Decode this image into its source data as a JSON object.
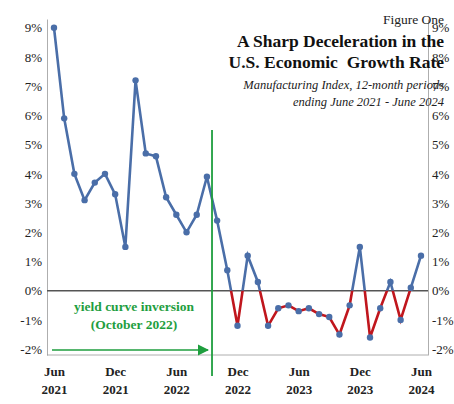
{
  "chart_data": {
    "type": "line",
    "title": [
      "A Sharp Deceleration in the",
      "U.S. Economic  Growth Rate"
    ],
    "subtitle": [
      "Manufacturing Index, 12-month periods",
      "ending June 2021 - June 2024"
    ],
    "annotations": [
      {
        "text": "Figure One"
      },
      {
        "text": [
          "yield curve inversion",
          "(October 2022)"
        ],
        "x": 15.5
      }
    ],
    "categories": [
      "Jun 2021",
      null,
      null,
      null,
      null,
      null,
      "Dec 2021",
      null,
      null,
      null,
      null,
      null,
      "Jun 2022",
      null,
      null,
      null,
      null,
      null,
      "Dec 2022",
      null,
      null,
      null,
      null,
      null,
      "Jun 2023",
      null,
      null,
      null,
      null,
      null,
      "Dec 2023",
      null,
      null,
      null,
      null,
      null,
      "Jun 2024"
    ],
    "series": [
      {
        "color": "#4a6ea8",
        "marker": "circle",
        "line_style": "solid",
        "values": [
          9.0,
          5.9,
          4.0,
          3.1,
          3.7,
          4.0,
          3.3,
          1.5,
          7.2,
          4.7,
          4.6,
          3.2,
          2.6,
          2.0,
          2.6,
          3.9,
          2.4,
          0.7,
          -1.2,
          1.2,
          0.3,
          -1.2,
          -0.6,
          -0.5,
          -0.7,
          -0.6,
          -0.8,
          -0.9,
          -1.5,
          -0.5,
          1.5,
          -1.6,
          -0.6,
          0.3,
          -1.0,
          0.1,
          1.2
        ]
      }
    ],
    "ylim": [
      -2.2,
      9.3
    ],
    "yticks": [
      {
        "value": -2,
        "label": "-2%"
      },
      {
        "value": -1,
        "label": "-1%"
      },
      {
        "value": 0,
        "label": "0%"
      },
      {
        "value": 1,
        "label": "1%"
      },
      {
        "value": 2,
        "label": "2%"
      },
      {
        "value": 3,
        "label": "3%"
      },
      {
        "value": 4,
        "label": "4%"
      },
      {
        "value": 5,
        "label": "5%"
      },
      {
        "value": 6,
        "label": "6%"
      },
      {
        "value": 7,
        "label": "7%"
      },
      {
        "value": 8,
        "label": "8%"
      },
      {
        "value": 9,
        "label": "9%"
      }
    ],
    "grid": false
  }
}
